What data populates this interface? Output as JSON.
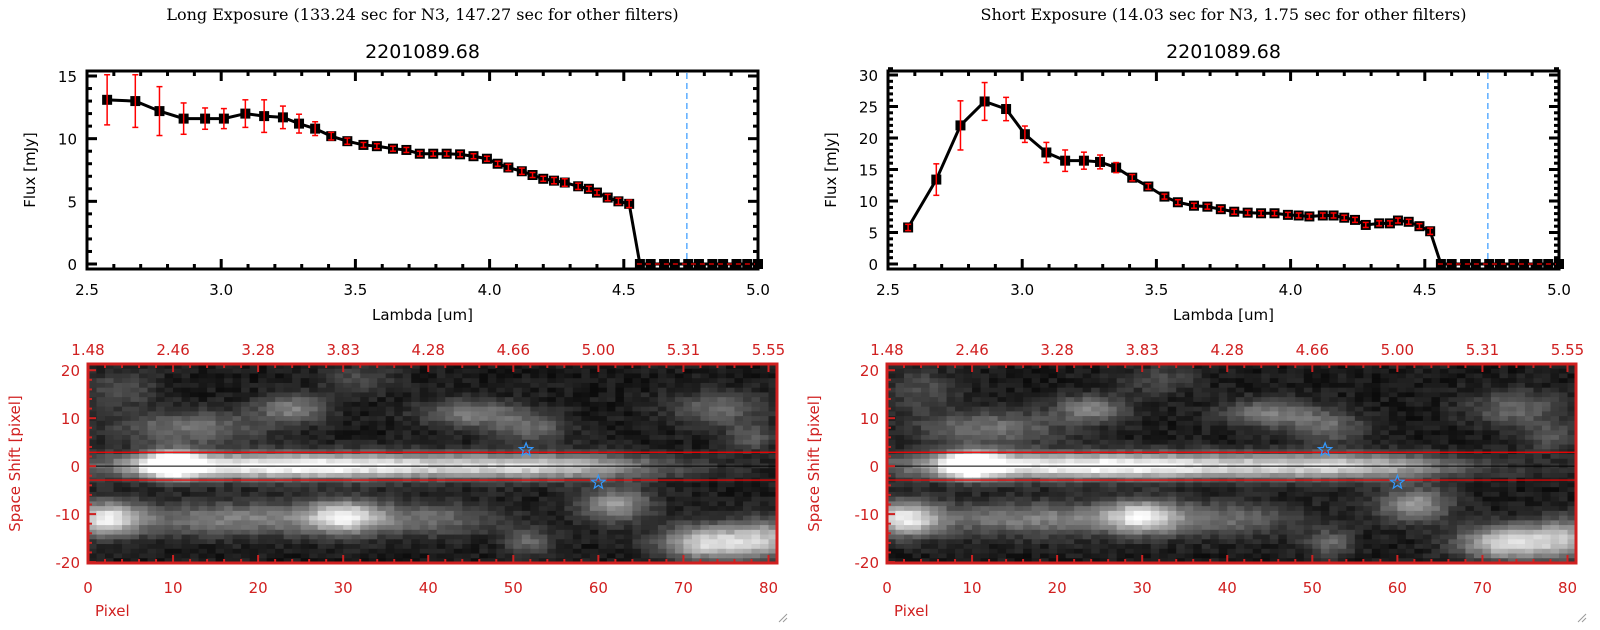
{
  "colors": {
    "axis_red": "#d02020",
    "error_red": "#ff0000",
    "marker_blue": "#3399ff",
    "line_black": "#000000",
    "aperture_red": "#ff0000"
  },
  "icons": {
    "resize_grip": "resize-grip-icon",
    "star_marker": "star-icon"
  },
  "chart_data": [
    {
      "type": "line",
      "title": "Long Exposure (133.24 sec for N3, 147.27 sec for other filters)",
      "subtitle": "2201089.68",
      "xlabel": "Lambda [um]",
      "ylabel": "Flux [mJy]",
      "xlim": [
        2.5,
        5.0
      ],
      "ylim": [
        0,
        15.5
      ],
      "xticks": [
        "2.5",
        "3.0",
        "3.5",
        "4.0",
        "4.5",
        "5.0"
      ],
      "yticks": [
        "0",
        "5",
        "10",
        "15"
      ],
      "x": [
        2.575,
        2.68,
        2.77,
        2.86,
        2.94,
        3.01,
        3.09,
        3.16,
        3.23,
        3.29,
        3.35,
        3.41,
        3.47,
        3.53,
        3.58,
        3.64,
        3.69,
        3.74,
        3.79,
        3.84,
        3.89,
        3.94,
        3.99,
        4.03,
        4.07,
        4.12,
        4.16,
        4.2,
        4.24,
        4.28,
        4.33,
        4.37,
        4.4,
        4.44,
        4.48,
        4.52
      ],
      "y": [
        13.1,
        13.0,
        12.2,
        11.6,
        11.6,
        11.6,
        12.0,
        11.8,
        11.7,
        11.2,
        10.8,
        10.2,
        9.8,
        9.5,
        9.4,
        9.2,
        9.1,
        8.8,
        8.8,
        8.8,
        8.75,
        8.6,
        8.4,
        8.0,
        7.7,
        7.4,
        7.1,
        6.8,
        6.65,
        6.5,
        6.2,
        6.0,
        5.7,
        5.3,
        5.0,
        4.8
      ],
      "yerr": [
        2.0,
        2.1,
        1.95,
        1.25,
        0.85,
        0.8,
        1.1,
        1.3,
        0.9,
        0.75,
        0.55,
        0.3,
        0.25,
        0.2,
        0.2,
        0.2,
        0.2,
        0.2,
        0.2,
        0.2,
        0.2,
        0.2,
        0.2,
        0.2,
        0.25,
        0.25,
        0.2,
        0.2,
        0.25,
        0.3,
        0.25,
        0.2,
        0.2,
        0.25,
        0.25,
        0.3
      ],
      "zero_x": [
        4.56,
        4.6,
        4.65,
        4.69,
        4.74,
        4.78,
        4.83,
        4.87,
        4.92,
        4.96,
        5.0
      ],
      "zero_y": 0,
      "vline_x": 4.735,
      "grid": false
    },
    {
      "type": "heatmap",
      "xlabel": "Pixel",
      "ylabel": "Space Shift [pixel]",
      "xlim": [
        0,
        81
      ],
      "ylim": [
        -20.2,
        21.3
      ],
      "xticks": [
        "0",
        "10",
        "20",
        "30",
        "40",
        "50",
        "60",
        "70",
        "80"
      ],
      "yticks": [
        "-20",
        "-10",
        "0",
        "10",
        "20"
      ],
      "top_xticks": [
        "1.48",
        "2.46",
        "3.28",
        "3.83",
        "4.28",
        "4.66",
        "5.00",
        "5.31",
        "5.55"
      ],
      "aperture_lines_y": [
        2.9,
        -2.9
      ],
      "center_line_y": 0,
      "stars": [
        {
          "x": 51.5,
          "y": 3.4
        },
        {
          "x": 60,
          "y": -3.4
        }
      ],
      "colormap": "grayscale"
    },
    {
      "type": "line",
      "title": "Short Exposure (14.03 sec for N3, 1.75 sec for other filters)",
      "subtitle": "2201089.68",
      "xlabel": "Lambda [um]",
      "ylabel": "Flux [mJy]",
      "xlim": [
        2.5,
        5.0
      ],
      "ylim": [
        0,
        31
      ],
      "xticks": [
        "2.5",
        "3.0",
        "3.5",
        "4.0",
        "4.5",
        "5.0"
      ],
      "yticks": [
        "0",
        "5",
        "10",
        "15",
        "20",
        "25",
        "30"
      ],
      "x": [
        2.575,
        2.68,
        2.77,
        2.86,
        2.94,
        3.01,
        3.09,
        3.16,
        3.23,
        3.29,
        3.35,
        3.41,
        3.47,
        3.53,
        3.58,
        3.64,
        3.69,
        3.74,
        3.79,
        3.84,
        3.89,
        3.94,
        3.99,
        4.03,
        4.07,
        4.12,
        4.16,
        4.2,
        4.24,
        4.28,
        4.33,
        4.37,
        4.4,
        4.44,
        4.48,
        4.52
      ],
      "y": [
        5.8,
        13.4,
        22.0,
        25.8,
        24.6,
        20.6,
        17.7,
        16.4,
        16.4,
        16.2,
        15.3,
        13.7,
        12.3,
        10.7,
        9.8,
        9.25,
        9.1,
        8.7,
        8.3,
        8.15,
        8.05,
        8.05,
        7.8,
        7.7,
        7.55,
        7.7,
        7.7,
        7.35,
        7.0,
        6.2,
        6.45,
        6.45,
        6.9,
        6.7,
        6.0,
        5.2
      ],
      "yerr": [
        0.5,
        2.5,
        3.9,
        3.0,
        1.85,
        1.3,
        1.6,
        1.7,
        1.35,
        1.1,
        0.8,
        0.5,
        0.45,
        0.4,
        0.4,
        0.4,
        0.4,
        0.4,
        0.4,
        0.4,
        0.4,
        0.4,
        0.4,
        0.4,
        0.4,
        0.4,
        0.4,
        0.4,
        0.4,
        0.4,
        0.4,
        0.4,
        0.4,
        0.4,
        0.4,
        0.5
      ],
      "zero_x": [
        4.56,
        4.6,
        4.65,
        4.69,
        4.74,
        4.78,
        4.83,
        4.87,
        4.92,
        4.96,
        5.0
      ],
      "zero_y": 0,
      "vline_x": 4.735,
      "grid": false
    },
    {
      "type": "heatmap",
      "xlabel": "Pixel",
      "ylabel": "Space Shift [pixel]",
      "xlim": [
        0,
        81
      ],
      "ylim": [
        -20.2,
        21.3
      ],
      "xticks": [
        "0",
        "10",
        "20",
        "30",
        "40",
        "50",
        "60",
        "70",
        "80"
      ],
      "yticks": [
        "-20",
        "-10",
        "0",
        "10",
        "20"
      ],
      "top_xticks": [
        "1.48",
        "2.46",
        "3.28",
        "3.83",
        "4.28",
        "4.66",
        "5.00",
        "5.31",
        "5.55"
      ],
      "aperture_lines_y": [
        2.9,
        -2.9
      ],
      "center_line_y": 0,
      "stars": [
        {
          "x": 51.5,
          "y": 3.4
        },
        {
          "x": 60,
          "y": -3.4
        }
      ],
      "colormap": "grayscale"
    }
  ]
}
